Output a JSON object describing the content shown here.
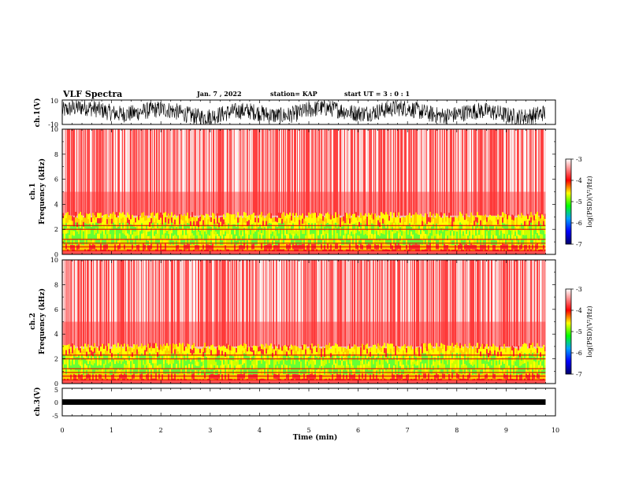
{
  "header": {
    "title": "VLF Spectra",
    "date": "Jan. 7 , 2022",
    "station": "station= KAP",
    "start": "start  UT =  3 : 0  : 1"
  },
  "chart_data": [
    {
      "type": "line",
      "name": "ch1-waveform",
      "ylabel": "ch.1(V)",
      "ylim": [
        -10,
        10
      ],
      "y_ticks": [
        "10",
        "-10"
      ],
      "xlim": [
        0,
        10
      ],
      "trace_extent_min": 9.8
    },
    {
      "type": "heatmap",
      "name": "ch1-spectrogram",
      "ylabel": "ch.1\nFrequency (kHz)",
      "ylabel_lines": [
        "ch.1",
        "Frequency (kHz)"
      ],
      "ylim": [
        0,
        10
      ],
      "y_ticks": [
        "0",
        "2",
        "4",
        "6",
        "8",
        "10"
      ],
      "xlim": [
        0,
        10
      ],
      "colorbar": {
        "label": "log(PSD)(V²/Hz)",
        "range": [
          -7,
          -3
        ],
        "ticks": [
          "-3",
          "-4",
          "-5",
          "-6",
          "-7"
        ]
      }
    },
    {
      "type": "heatmap",
      "name": "ch2-spectrogram",
      "ylabel": "ch.2\nFrequency (kHz)",
      "ylabel_lines": [
        "ch.2",
        "Frequency (kHz)"
      ],
      "ylim": [
        0,
        10
      ],
      "y_ticks": [
        "0",
        "2",
        "4",
        "6",
        "8",
        "10"
      ],
      "xlim": [
        0,
        10
      ],
      "colorbar": {
        "label": "log(PSD)(V²/Hz)",
        "range": [
          -7,
          -3
        ],
        "ticks": [
          "-3",
          "-4",
          "-5",
          "-6",
          "-7"
        ]
      }
    },
    {
      "type": "line",
      "name": "ch3-waveform",
      "ylabel": "ch.3(V)",
      "ylim": [
        -5,
        5
      ],
      "y_ticks": [
        "5",
        "0",
        "-5"
      ],
      "xlim": [
        0,
        10
      ],
      "xlabel": "Time (min)",
      "x_ticks": [
        "0",
        "1",
        "2",
        "3",
        "4",
        "5",
        "6",
        "7",
        "8",
        "9",
        "10"
      ]
    }
  ],
  "colors": {
    "background": "#ffffff",
    "axes": "#000000",
    "colormap": [
      "#00008b",
      "#0000ff",
      "#00ff00",
      "#ffff00",
      "#ff0000",
      "#ffffff"
    ]
  }
}
